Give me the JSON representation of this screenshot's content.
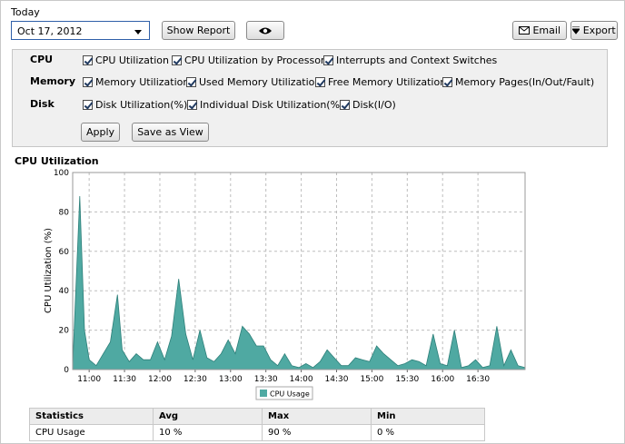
{
  "header": {
    "period_label": "Today",
    "date_value": "Oct 17, 2012",
    "show_report_label": "Show Report",
    "view_icon": "eye-icon",
    "email_label": "Email",
    "export_label": "Export"
  },
  "filters": {
    "cpu": {
      "label": "CPU",
      "options": [
        "CPU Utilization",
        "CPU Utilization by Processor",
        "Interrupts and Context Switches"
      ]
    },
    "memory": {
      "label": "Memory",
      "options": [
        "Memory Utilization",
        "Used Memory Utilization",
        "Free Memory Utilization",
        "Memory Pages(In/Out/Fault)"
      ]
    },
    "disk": {
      "label": "Disk",
      "options": [
        "Disk Utilization(%)",
        "Individual Disk Utilization(%)",
        "Disk(I/O)"
      ]
    },
    "apply_label": "Apply",
    "save_view_label": "Save as View"
  },
  "section_title": "CPU Utilization",
  "colors": {
    "series": "#4fa9a2",
    "series_line": "#2d7f79"
  },
  "chart_data": {
    "type": "area",
    "ylabel": "CPU Utilization (%)",
    "ylim": [
      0,
      100
    ],
    "yticks": [
      "0",
      "20",
      "40",
      "60",
      "80",
      "100"
    ],
    "xticks": [
      "11:00",
      "11:30",
      "12:00",
      "12:30",
      "13:00",
      "13:30",
      "14:00",
      "14:30",
      "15:00",
      "15:30",
      "16:00",
      "16:30"
    ],
    "x_range_minutes": [
      -7,
      185
    ],
    "legend": "bottom",
    "series": [
      {
        "name": "CPU Usage",
        "x": [
          -7,
          -4,
          -2,
          0,
          3,
          6,
          9,
          12,
          14,
          17,
          20,
          23,
          26,
          29,
          32,
          35,
          38,
          41,
          44,
          47,
          50,
          53,
          56,
          59,
          62,
          65,
          68,
          71,
          74,
          77,
          80,
          83,
          86,
          89,
          92,
          95,
          98,
          101,
          104,
          107,
          110,
          113,
          116,
          119,
          122,
          125,
          128,
          131,
          134,
          137,
          140,
          143,
          146,
          149,
          152,
          155,
          158,
          161,
          164,
          167,
          170,
          173,
          176,
          179,
          182,
          185
        ],
        "y": [
          2,
          88,
          20,
          5,
          2,
          8,
          14,
          38,
          10,
          4,
          8,
          5,
          5,
          14,
          5,
          17,
          46,
          18,
          5,
          20,
          6,
          4,
          8,
          15,
          8,
          22,
          18,
          12,
          12,
          5,
          2,
          8,
          2,
          1,
          3,
          1,
          4,
          10,
          6,
          2,
          2,
          6,
          5,
          4,
          12,
          8,
          5,
          2,
          3,
          5,
          4,
          2,
          18,
          3,
          2,
          20,
          1,
          2,
          5,
          1,
          2,
          22,
          2,
          10,
          2,
          1
        ]
      }
    ]
  },
  "stats": {
    "headers": [
      "Statistics",
      "Avg",
      "Max",
      "Min"
    ],
    "rows": [
      [
        "CPU Usage",
        "10 %",
        "90 %",
        "0 %"
      ]
    ]
  }
}
